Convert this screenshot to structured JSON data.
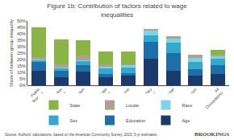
{
  "chart_data": {
    "type": "bar",
    "stacked": true,
    "title": "Figure 1b: Contribution of factors related to wage\ninequalities",
    "ylabel": "Share of between-group inequality",
    "categories": [
      "Public\nTeacher",
      "Education\nAdministrator",
      "Social Worker",
      "Private\nTeacher",
      "Nurse",
      "Postsecondary\nTeacher",
      "Physician",
      "Lawyer",
      "All\nOccupations"
    ],
    "series": [
      {
        "name": "Age",
        "color": "#1a3a6b",
        "values": [
          11.5,
          6.0,
          10.5,
          6.0,
          7.5,
          20.5,
          11.5,
          7.5,
          9.0
        ]
      },
      {
        "name": "Education",
        "color": "#1e6fa8",
        "values": [
          6.5,
          5.5,
          5.0,
          3.0,
          2.0,
          13.5,
          13.5,
          5.0,
          6.5
        ]
      },
      {
        "name": "Sex",
        "color": "#33a9cc",
        "values": [
          1.5,
          1.5,
          3.0,
          4.0,
          4.5,
          5.0,
          8.0,
          5.5,
          5.0
        ]
      },
      {
        "name": "Race",
        "color": "#7dd3e8",
        "values": [
          0.5,
          0.5,
          1.0,
          1.5,
          1.5,
          3.5,
          3.5,
          3.5,
          2.0
        ]
      },
      {
        "name": "Locale",
        "color": "#b0a090",
        "values": [
          2.0,
          2.5,
          3.5,
          1.5,
          1.0,
          1.0,
          1.5,
          2.0,
          1.5
        ]
      },
      {
        "name": "State",
        "color": "#8ab545",
        "values": [
          23.0,
          19.5,
          12.0,
          10.5,
          10.0,
          0.0,
          0.0,
          0.0,
          3.5
        ]
      }
    ],
    "ylim": [
      0,
      50
    ],
    "yticks": [
      {
        "value": 0,
        "label": "0%"
      },
      {
        "value": 5,
        "label": "5%"
      },
      {
        "value": 10,
        "label": "10%"
      },
      {
        "value": 15,
        "label": "15%"
      },
      {
        "value": 20,
        "label": "20%"
      },
      {
        "value": 25,
        "label": "25%"
      },
      {
        "value": 30,
        "label": "30%"
      },
      {
        "value": 35,
        "label": "35%"
      },
      {
        "value": 40,
        "label": "40%"
      },
      {
        "value": 45,
        "label": "45%"
      },
      {
        "value": 50,
        "label": "50%"
      }
    ],
    "grid": false,
    "legend": "bottom",
    "annotations": [
      "Source: Authors' calculations, based on the American Community Survey, 2015, 5-yr estimates.",
      "BROOKINGS"
    ]
  }
}
